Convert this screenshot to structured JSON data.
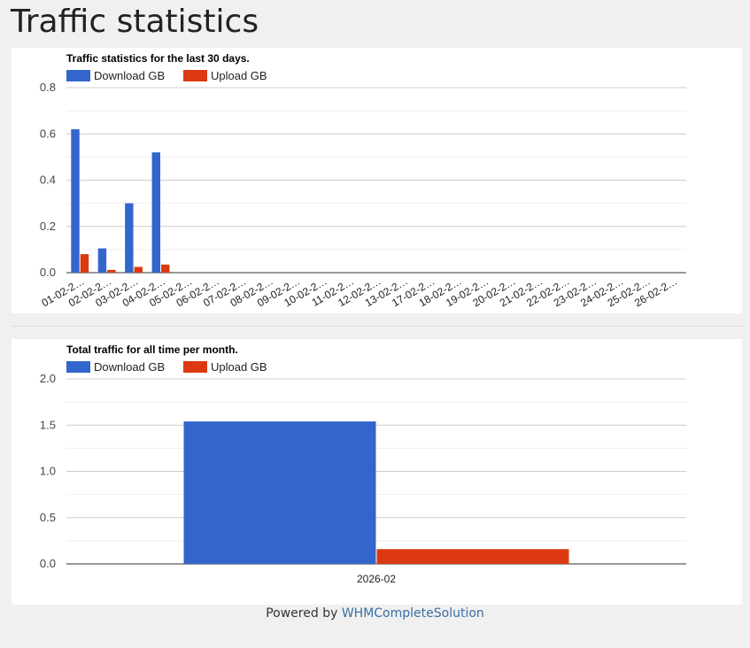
{
  "page_title": "Traffic statistics",
  "footer": {
    "prefix": "Powered by",
    "link": "WHMCompleteSolution"
  },
  "colors": {
    "download": "#3366cc",
    "upload": "#dc3912"
  },
  "chart_data": [
    {
      "type": "bar",
      "title": "Traffic statistics for the last 30 days.",
      "categories": [
        "01-02-2…",
        "02-02-2…",
        "03-02-2…",
        "04-02-2…",
        "05-02-2…",
        "06-02-2…",
        "07-02-2…",
        "08-02-2…",
        "09-02-2…",
        "10-02-2…",
        "11-02-2…",
        "12-02-2…",
        "13-02-2…",
        "17-02-2…",
        "18-02-2…",
        "19-02-2…",
        "20-02-2…",
        "21-02-2…",
        "22-02-2…",
        "23-02-2…",
        "24-02-2…",
        "25-02-2…",
        "26-02-2…"
      ],
      "series": [
        {
          "name": "Download GB",
          "values": [
            0.62,
            0.105,
            0.3,
            0.52,
            0.001,
            0.001,
            0.001,
            0.001,
            0.001,
            0.001,
            0.001,
            0.001,
            0.001,
            0.001,
            0.001,
            0.001,
            0.001,
            0.001,
            0.001,
            0.001,
            0.001,
            0.001,
            0.001
          ]
        },
        {
          "name": "Upload GB",
          "values": [
            0.08,
            0.012,
            0.025,
            0.035,
            0.001,
            0.001,
            0.001,
            0.001,
            0.001,
            0.001,
            0.001,
            0.001,
            0.001,
            0.001,
            0.001,
            0.001,
            0.001,
            0.001,
            0.001,
            0.001,
            0.001,
            0.001,
            0.001
          ]
        }
      ],
      "yticks": [
        "0.0",
        "0.2",
        "0.4",
        "0.6",
        "0.8"
      ],
      "ylim": [
        0,
        0.8
      ],
      "legend": "top-left",
      "grid": true
    },
    {
      "type": "bar",
      "title": "Total traffic for all time per month.",
      "categories": [
        "2026-02"
      ],
      "series": [
        {
          "name": "Download GB",
          "values": [
            1.54
          ]
        },
        {
          "name": "Upload GB",
          "values": [
            0.16
          ]
        }
      ],
      "yticks": [
        "0.0",
        "0.5",
        "1.0",
        "1.5",
        "2.0"
      ],
      "ylim": [
        0,
        2.0
      ],
      "legend": "top-left",
      "grid": true
    }
  ]
}
